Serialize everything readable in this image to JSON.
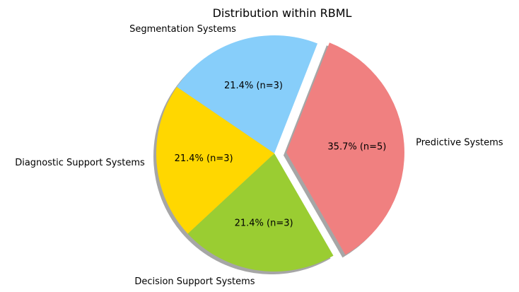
{
  "chart_data": {
    "type": "pie",
    "title": "Distribution within RBML",
    "categories": [
      "Predictive Systems",
      "Segmentation Systems",
      "Diagnostic Support Systems",
      "Decision Support Systems"
    ],
    "values": [
      5,
      3,
      3,
      3
    ],
    "percent_labels": [
      "35.7% (n=5)",
      "21.4% (n=3)",
      "21.4% (n=3)",
      "21.4% (n=3)"
    ],
    "colors": [
      "#f08080",
      "#87cefa",
      "#ffd700",
      "#9acd32"
    ],
    "exploded": [
      true,
      false,
      false,
      false
    ],
    "shadow": true,
    "start_angle_deg": -60
  }
}
